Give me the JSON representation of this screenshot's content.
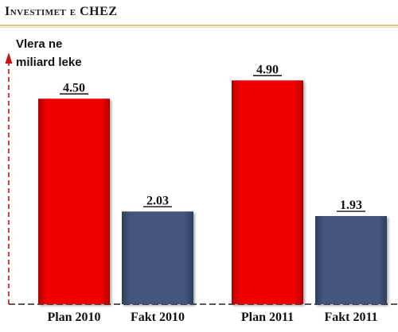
{
  "chart_data": {
    "type": "bar",
    "title": "Investimet e CHEZ",
    "ylabel": "Vlera ne miliard leke",
    "ylabel_lines": [
      "Vlera ne",
      "miliard leke"
    ],
    "xlabel": "",
    "categories": [
      "Plan 2010",
      "Fakt 2010",
      "Plan 2011",
      "Fakt 2011"
    ],
    "values": [
      4.5,
      2.03,
      4.9,
      1.93
    ],
    "data_labels": [
      "4.50",
      "2.03",
      "4.90",
      "1.93"
    ],
    "bar_colors": [
      "#f00000",
      "#44567d",
      "#f00000",
      "#44567d"
    ],
    "ylim": [
      0,
      5.2
    ],
    "grid": false,
    "legend": "none",
    "axis_style": "dashed"
  },
  "colors": {
    "plan": "#f00000",
    "fakt": "#44567d",
    "axis": "#222222",
    "y_arrow": "#cc1111"
  }
}
